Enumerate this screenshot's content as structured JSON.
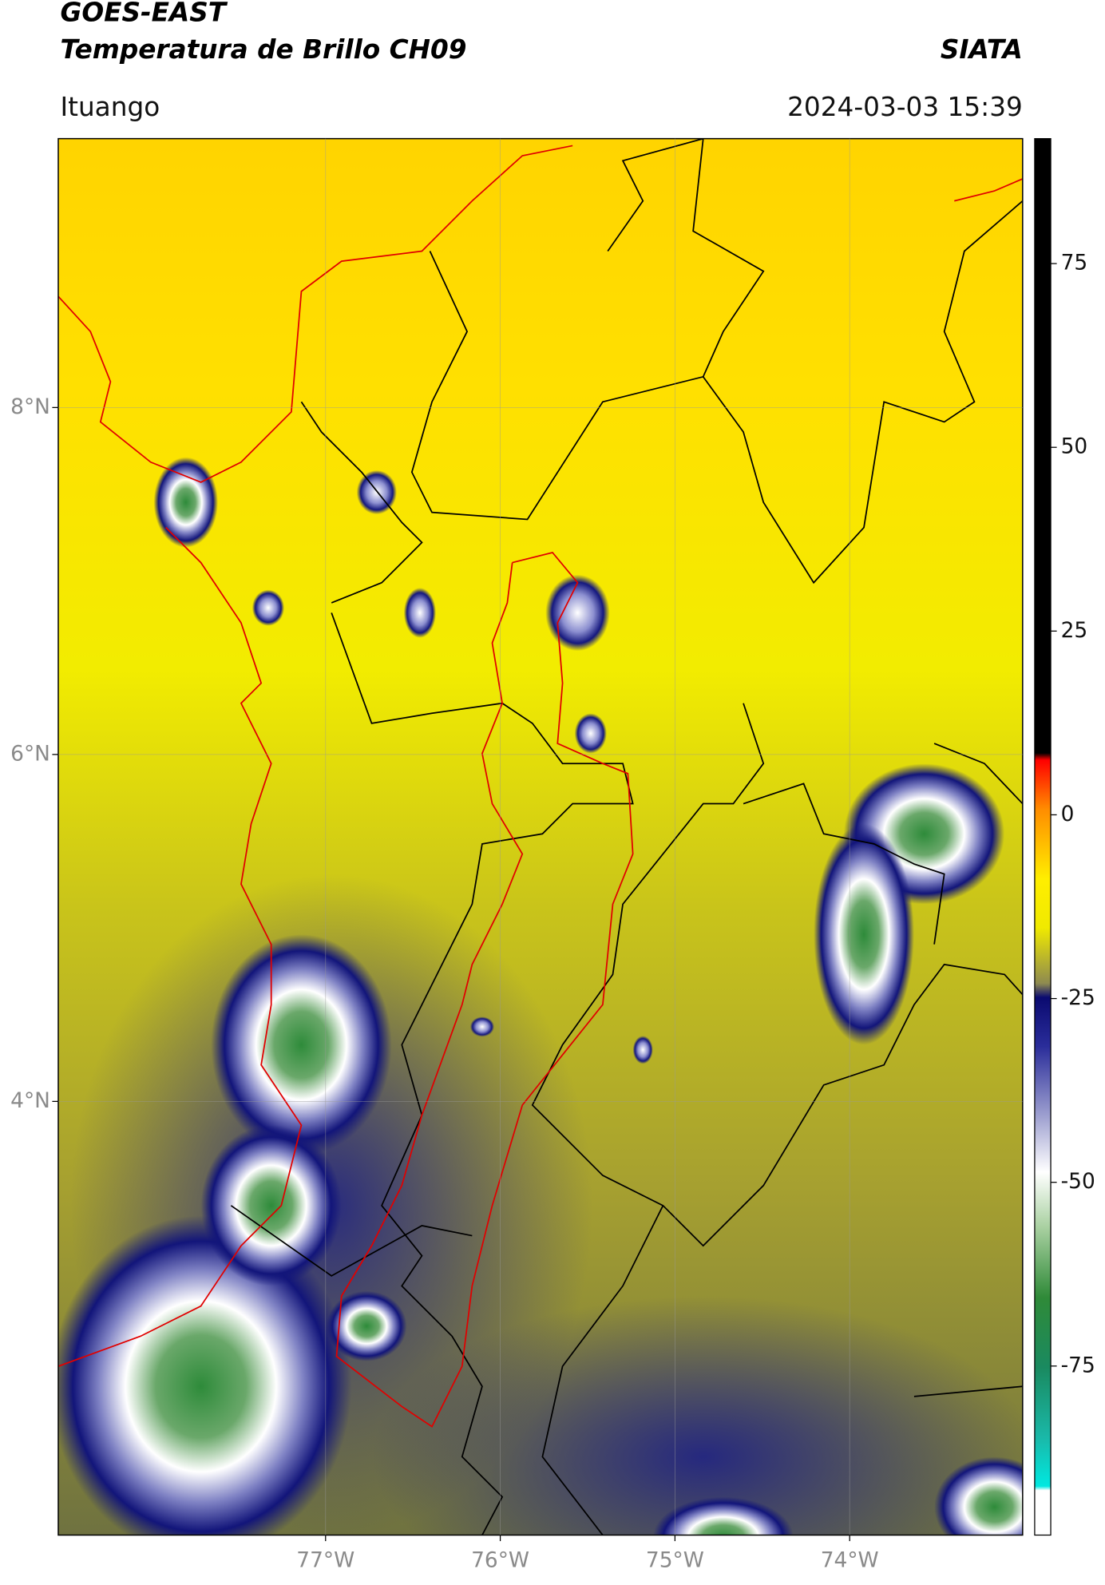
{
  "header": {
    "title": "GOES-EAST",
    "subtitle": "Temperatura de Brillo CH09",
    "source": "SIATA",
    "region": "Ituango",
    "datetime": "2024-03-03 15:39"
  },
  "chart_data": {
    "type": "map",
    "xlim": [
      -78.53,
      -73.01
    ],
    "ylim": [
      1.5,
      9.55
    ],
    "xticks": [
      {
        "value": -77,
        "label": "77°W"
      },
      {
        "value": -76,
        "label": "76°W"
      },
      {
        "value": -75,
        "label": "75°W"
      },
      {
        "value": -74,
        "label": "74°W"
      }
    ],
    "yticks": [
      {
        "value": 4,
        "label": "4°N"
      },
      {
        "value": 6,
        "label": "6°N"
      },
      {
        "value": 8,
        "label": "8°N"
      }
    ],
    "grid": true,
    "colorbar": {
      "lim": [
        -98,
        92
      ],
      "ticks": [
        -75,
        -50,
        -25,
        0,
        25,
        50,
        75
      ]
    }
  }
}
